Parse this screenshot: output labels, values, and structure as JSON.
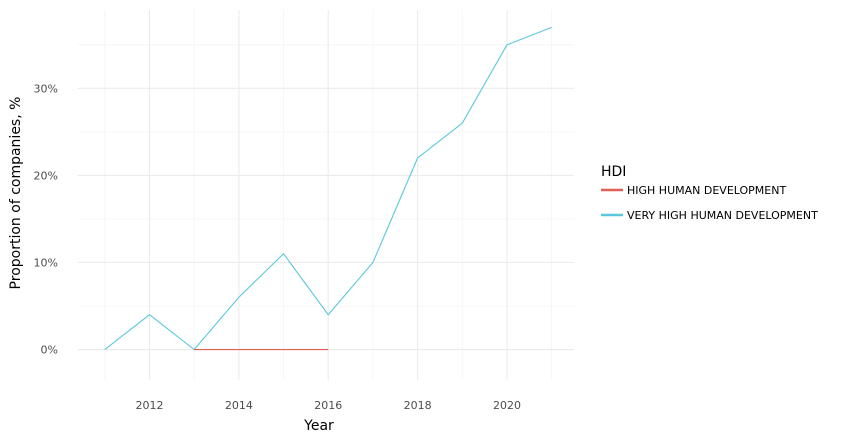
{
  "chart_data": {
    "type": "line",
    "title": "",
    "xlabel": "Year",
    "ylabel": "Proportion of companies, %",
    "xlim": [
      2010.4,
      2021.5
    ],
    "ylim": [
      -3.5,
      39
    ],
    "x_ticks": [
      2012,
      2014,
      2016,
      2018,
      2020
    ],
    "x_tick_labels": [
      "2012",
      "2014",
      "2016",
      "2018",
      "2020"
    ],
    "y_ticks": [
      0,
      10,
      20,
      30
    ],
    "y_tick_labels": [
      "0%",
      "10%",
      "20%",
      "30%"
    ],
    "grid": true,
    "legend": {
      "title": "HDI",
      "placement": "right"
    },
    "series": [
      {
        "name": "HIGH HUMAN DEVELOPMENT",
        "color": "#e15f57",
        "x": [
          2013,
          2014,
          2015,
          2016
        ],
        "values": [
          0,
          0,
          0,
          0
        ]
      },
      {
        "name": "VERY HIGH HUMAN DEVELOPMENT",
        "color": "#5ac8dc",
        "x": [
          2011,
          2012,
          2013,
          2014,
          2015,
          2016,
          2017,
          2018,
          2019,
          2020,
          2021
        ],
        "values": [
          0,
          4,
          0,
          6,
          11,
          4,
          10,
          22,
          26,
          35,
          37
        ]
      }
    ]
  }
}
